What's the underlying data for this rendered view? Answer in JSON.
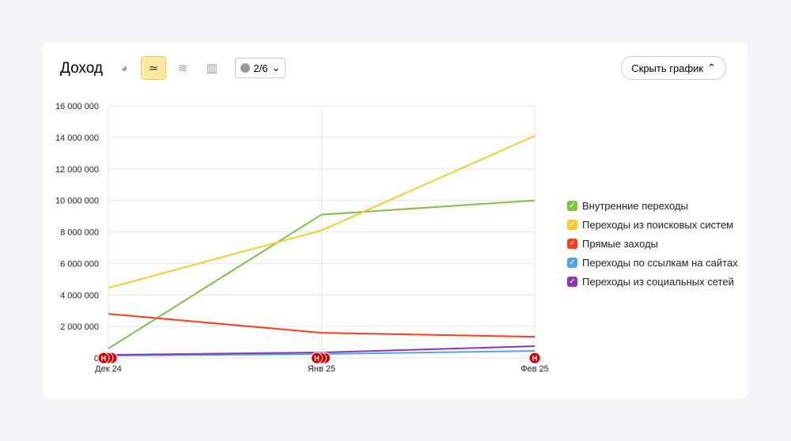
{
  "header": {
    "title": "Доход",
    "notes_count": "2/6",
    "hide_label": "Скрыть график",
    "buttons": [
      "pie-chart-icon",
      "line-chart-icon",
      "area-chart-icon",
      "bar-chart-icon"
    ],
    "active": "line-chart-icon"
  },
  "chart_data": {
    "type": "line",
    "categories": [
      "Дек 24",
      "Янв 25",
      "Фев 25"
    ],
    "ylim": [
      0,
      16000000
    ],
    "yticks": [
      "0",
      "2 000 000",
      "4 000 000",
      "6 000 000",
      "8 000 000",
      "10 000 000",
      "12 000 000",
      "14 000 000",
      "16 000 000"
    ],
    "grid": true,
    "legend_position": "right",
    "annotation_marker": "Н",
    "series": [
      {
        "name": "Внутренние переходы",
        "color": "#7dc242",
        "values": [
          600000,
          9100000,
          10000000
        ]
      },
      {
        "name": "Переходы из поисковых систем",
        "color": "#fcc82e",
        "values": [
          4450000,
          8100000,
          14100000
        ]
      },
      {
        "name": "Прямые заходы",
        "color": "#ff3b1a",
        "values": [
          2800000,
          1600000,
          1350000
        ]
      },
      {
        "name": "Переходы по ссылкам на сайтах",
        "color": "#4fa6ee",
        "values": [
          150000,
          250000,
          450000
        ]
      },
      {
        "name": "Переходы из социальных сетей",
        "color": "#8e35b5",
        "values": [
          200000,
          350000,
          750000
        ]
      }
    ]
  }
}
